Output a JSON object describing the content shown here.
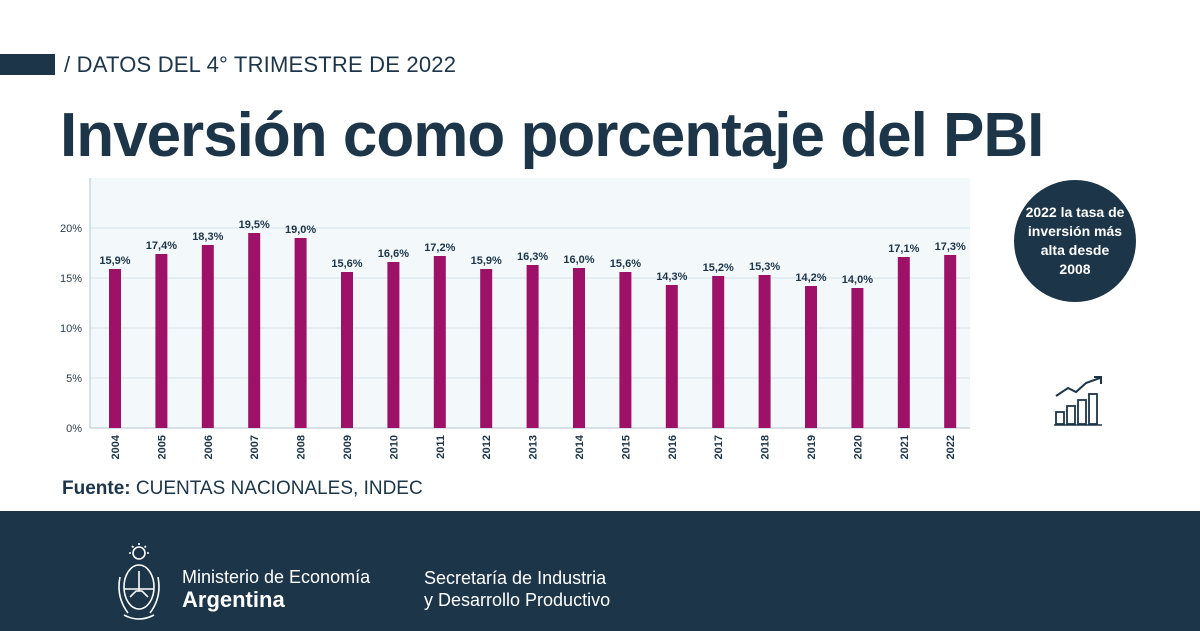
{
  "header": {
    "kicker": "/ DATOS DEL 4° TRIMESTRE DE 2022",
    "title": "Inversión como porcentaje del PBI"
  },
  "callout": {
    "text": "2022 la tasa de inversión más alta desde 2008"
  },
  "source": {
    "label": "Fuente:",
    "value": "CUENTAS NACIONALES, INDEC"
  },
  "footer": {
    "ministry": "Ministerio de Economía",
    "country": "Argentina",
    "secretaria_line1": "Secretaría de Industria",
    "secretaria_line2": "y Desarrollo Productivo"
  },
  "colors": {
    "bar": "#9e1168",
    "navy": "#1c3548",
    "plot_bg": "#f3f8fb",
    "grid": "#d6e2ea"
  },
  "icons": [
    "growth-chart-icon",
    "argentina-coat-of-arms-icon"
  ],
  "chart_data": {
    "type": "bar",
    "title": "Inversión como porcentaje del PBI",
    "categories": [
      "2004",
      "2005",
      "2006",
      "2007",
      "2008",
      "2009",
      "2010",
      "2011",
      "2012",
      "2013",
      "2014",
      "2015",
      "2016",
      "2017",
      "2018",
      "2019",
      "2020",
      "2021",
      "2022"
    ],
    "values": [
      15.9,
      17.4,
      18.3,
      19.5,
      19.0,
      15.6,
      16.6,
      17.2,
      15.9,
      16.3,
      16.0,
      15.6,
      14.3,
      15.2,
      15.3,
      14.2,
      14.0,
      17.1,
      17.3
    ],
    "labels": [
      "15,9%",
      "17,4%",
      "18,3%",
      "19,5%",
      "19,0%",
      "15,6%",
      "16,6%",
      "17,2%",
      "15,9%",
      "16,3%",
      "16,0%",
      "15,6%",
      "14,3%",
      "15,2%",
      "15,3%",
      "14,2%",
      "14,0%",
      "17,1%",
      "17,3%"
    ],
    "yticks": [
      0,
      5,
      10,
      15,
      20
    ],
    "ytick_labels": [
      "0%",
      "5%",
      "10%",
      "15%",
      "20%"
    ],
    "ylim": [
      0,
      25
    ],
    "xlabel": "",
    "ylabel": "",
    "grid": true,
    "legend": "none"
  }
}
